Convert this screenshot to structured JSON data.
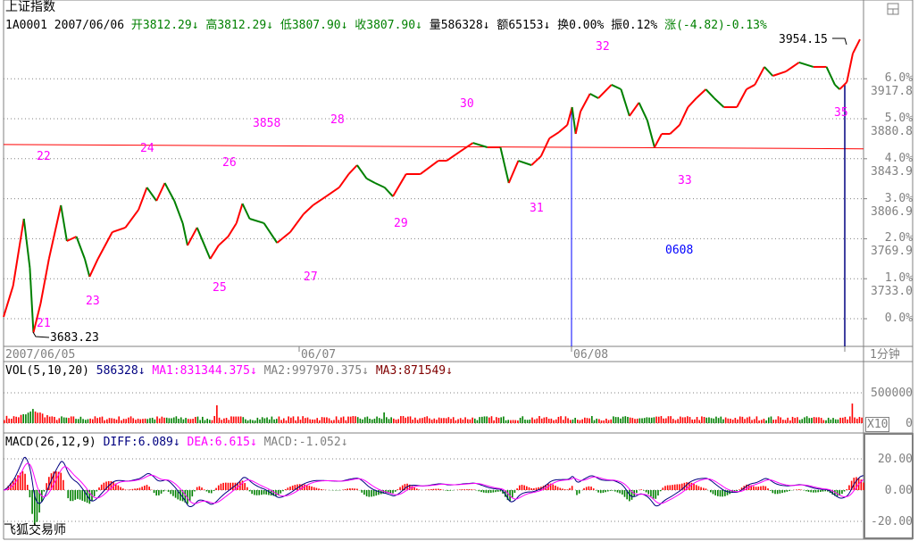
{
  "title": "上证指数",
  "quote": {
    "code": "1A0001",
    "date": "2007/06/06",
    "open": "开3812.29↓",
    "high": "高3812.29↓",
    "low": "低3807.90↓",
    "close": "收3807.90↓",
    "volume": "量586328↓",
    "amount": "额65153↓",
    "turnover": "换0.00%",
    "amplitude": "振0.12%",
    "change": "涨(-4.82)-0.13%"
  },
  "colors": {
    "up": "#ff0000",
    "down": "#008000",
    "annotation": "#ff00ff",
    "line": "#0000ff",
    "axis": "#808080"
  },
  "price_axis": {
    "levels": [
      {
        "pct": "0.0%",
        "price": ""
      },
      {
        "pct": "1.0%",
        "price": "3733.0"
      },
      {
        "pct": "2.0%",
        "price": "3769.9"
      },
      {
        "pct": "3.0%",
        "price": "3806.9"
      },
      {
        "pct": "4.0%",
        "price": "3843.9"
      },
      {
        "pct": "5.0%",
        "price": "3880.8"
      },
      {
        "pct": "6.0%",
        "price": "3917.8"
      }
    ]
  },
  "markers": {
    "low_label": "3683.23",
    "high_label": "3954.15"
  },
  "annotations": {
    "a21": "21",
    "a22": "22",
    "a23": "23",
    "a24": "24",
    "a25": "25",
    "a26": "26",
    "a27": "27",
    "a3858": "3858",
    "a28": "28",
    "a29": "29",
    "a30": "30",
    "a31": "31",
    "a32": "32",
    "a33": "33",
    "a35": "35",
    "a0608": "0608"
  },
  "date_axis": {
    "d1": "2007/06/05",
    "d2": "06/07",
    "d3": "06/08",
    "period": "1分钟"
  },
  "vol": {
    "label": "VOL(5,10,20)",
    "value": "586328↓",
    "ma1": "MA1:831344.375↓",
    "ma2": "MA2:997970.375↓",
    "ma3": "MA3:871549↓",
    "axis_top": "500000",
    "axis_zero": "0",
    "multiplier": "X10"
  },
  "macd": {
    "label": "MACD(26,12,9)",
    "diff": "DIFF:6.089↓",
    "dea": "DEA:6.615↓",
    "macd": "MACD:-1.052↓",
    "axis": [
      "20.00",
      "0.00",
      "-20.00"
    ]
  },
  "watermark": "飞狐交易师",
  "chart_data": {
    "type": "line",
    "xlabel": "",
    "ylabel": "",
    "base_price": 3696.0,
    "ylim": [
      3683.23,
      3954.15
    ],
    "minutes_total": 720,
    "reference_line": [
      3857,
      3853
    ],
    "series": [
      {
        "points": [
          [
            0,
            3697.7
          ],
          [
            8,
            3726.5
          ],
          [
            17,
            3788.4
          ],
          [
            22,
            3743.0
          ],
          [
            25,
            3683.23
          ],
          [
            31,
            3710.0
          ],
          [
            38,
            3751.3
          ],
          [
            48,
            3800.8
          ],
          [
            53,
            3767.8
          ],
          [
            61,
            3771.9
          ],
          [
            68,
            3751.3
          ],
          [
            72,
            3734.8
          ],
          [
            79,
            3751.3
          ],
          [
            91,
            3776.0
          ],
          [
            102,
            3780.2
          ],
          [
            113,
            3796.7
          ],
          [
            120,
            3817.3
          ],
          [
            128,
            3804.9
          ],
          [
            135,
            3821.4
          ],
          [
            143,
            3804.9
          ],
          [
            150,
            3784.3
          ],
          [
            154,
            3763.7
          ],
          [
            162,
            3780.2
          ],
          [
            173,
            3751.3
          ],
          [
            180,
            3763.7
          ],
          [
            188,
            3771.9
          ],
          [
            195,
            3784.3
          ],
          [
            200,
            3802.4
          ],
          [
            206,
            3788.4
          ],
          [
            218,
            3784.3
          ],
          [
            229,
            3766.1
          ],
          [
            240,
            3776.0
          ],
          [
            251,
            3792.5
          ],
          [
            259,
            3800.8
          ],
          [
            270,
            3809.0
          ],
          [
            281,
            3817.3
          ],
          [
            289,
            3829.7
          ],
          [
            296,
            3837.9
          ],
          [
            304,
            3825.5
          ],
          [
            311,
            3821.4
          ],
          [
            319,
            3817.3
          ],
          [
            326,
            3809.0
          ],
          [
            337,
            3829.7
          ],
          [
            349,
            3829.7
          ],
          [
            364,
            3842.0
          ],
          [
            371,
            3842.0
          ],
          [
            382,
            3850.3
          ],
          [
            393,
            3858.5
          ],
          [
            405,
            3854.4
          ],
          [
            416,
            3854.4
          ],
          [
            423,
            3821.4
          ],
          [
            431,
            3842.0
          ],
          [
            442,
            3837.9
          ],
          [
            450,
            3846.2
          ],
          [
            457,
            3862.7
          ],
          [
            465,
            3868.4
          ],
          [
            472,
            3875.0
          ],
          [
            476,
            3891.5
          ],
          [
            479,
            3866.8
          ],
          [
            483,
            3887.4
          ],
          [
            491,
            3903.9
          ],
          [
            498,
            3899.8
          ],
          [
            509,
            3912.2
          ],
          [
            517,
            3908.0
          ],
          [
            524,
            3883.3
          ],
          [
            532,
            3895.7
          ],
          [
            539,
            3879.2
          ],
          [
            545,
            3854.4
          ],
          [
            551,
            3866.8
          ],
          [
            558,
            3866.8
          ],
          [
            566,
            3875.0
          ],
          [
            573,
            3891.5
          ],
          [
            580,
            3899.8
          ],
          [
            588,
            3908.0
          ],
          [
            595,
            3899.8
          ],
          [
            603,
            3891.5
          ],
          [
            614,
            3891.5
          ],
          [
            622,
            3908.0
          ],
          [
            629,
            3912.2
          ],
          [
            637,
            3928.7
          ],
          [
            644,
            3920.4
          ],
          [
            655,
            3924.5
          ],
          [
            666,
            3932.8
          ],
          [
            678,
            3928.7
          ],
          [
            689,
            3928.7
          ],
          [
            696,
            3912.2
          ],
          [
            700,
            3908.0
          ],
          [
            706,
            3914.6
          ],
          [
            711,
            3941.0
          ],
          [
            717,
            3954.15
          ]
        ]
      }
    ]
  }
}
